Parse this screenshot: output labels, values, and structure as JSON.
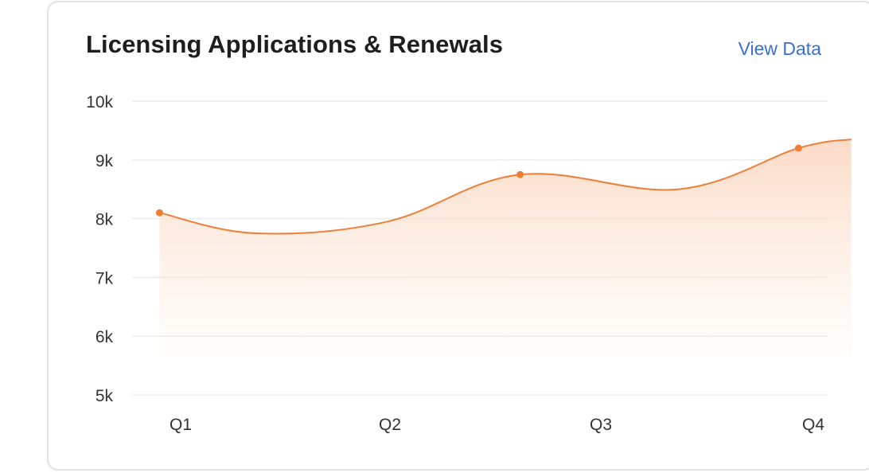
{
  "card": {
    "title": "Licensing Applications & Renewals",
    "view_link": "View Data"
  },
  "colors": {
    "line": "#f07f36",
    "area_top": "#fbd9c4",
    "grid": "#ececec",
    "link": "#3a6fd8"
  },
  "chart_data": {
    "type": "area",
    "title": "Licensing Applications & Renewals",
    "xlabel": "",
    "ylabel": "",
    "categories": [
      "Q1",
      "Q2",
      "Q3",
      "Q4"
    ],
    "y_ticks": [
      "10k",
      "9k",
      "8k",
      "7k",
      "6k",
      "5k"
    ],
    "ylim": [
      5000,
      10000
    ],
    "grid": true,
    "legend": "none",
    "series": [
      {
        "x": [
          0.9,
          1.36,
          1.98,
          2.61,
          3.36,
          3.93,
          4.18
        ],
        "values": [
          8100,
          7750,
          7950,
          8750,
          8500,
          9200,
          9350
        ],
        "markers": [
          true,
          false,
          false,
          true,
          false,
          true,
          false
        ]
      }
    ]
  }
}
